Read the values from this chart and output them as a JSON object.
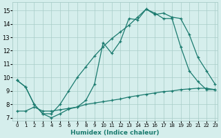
{
  "xlabel": "Humidex (Indice chaleur)",
  "xlim_min": -0.5,
  "xlim_max": 23.3,
  "ylim_min": 6.8,
  "ylim_max": 15.6,
  "yticks": [
    7,
    8,
    9,
    10,
    11,
    12,
    13,
    14,
    15
  ],
  "xticks": [
    0,
    1,
    2,
    3,
    4,
    5,
    6,
    7,
    8,
    9,
    10,
    11,
    12,
    13,
    14,
    15,
    16,
    17,
    18,
    19,
    20,
    21,
    22,
    23
  ],
  "background_color": "#d5eeec",
  "grid_color": "#a8ccc8",
  "line_color": "#1a7a6e",
  "line1_x": [
    0,
    1,
    2,
    3,
    4,
    5,
    6,
    7,
    8,
    9,
    10,
    11,
    12,
    13,
    14,
    15,
    16,
    17,
    18,
    19,
    20,
    21,
    22,
    23
  ],
  "line1_y": [
    9.8,
    9.3,
    8.0,
    7.3,
    7.0,
    7.3,
    7.65,
    7.8,
    8.3,
    9.5,
    12.6,
    11.8,
    12.7,
    14.4,
    14.3,
    15.1,
    14.8,
    14.4,
    14.4,
    12.3,
    10.5,
    9.7,
    9.1,
    9.1
  ],
  "line2_x": [
    0,
    1,
    2,
    3,
    4,
    5,
    6,
    7,
    8,
    9,
    10,
    11,
    12,
    13,
    14,
    15,
    16,
    17,
    18,
    19,
    20,
    21,
    22,
    23
  ],
  "line2_y": [
    9.8,
    9.3,
    8.0,
    7.3,
    7.3,
    8.0,
    9.0,
    10.0,
    10.8,
    11.6,
    12.3,
    12.9,
    13.4,
    13.9,
    14.5,
    15.1,
    14.7,
    14.8,
    14.5,
    14.4,
    13.2,
    11.5,
    10.5,
    9.5
  ],
  "line3_x": [
    0,
    1,
    2,
    3,
    4,
    5,
    6,
    7,
    8,
    9,
    10,
    11,
    12,
    13,
    14,
    15,
    16,
    17,
    18,
    19,
    20,
    21,
    22,
    23
  ],
  "line3_y": [
    7.5,
    7.5,
    7.8,
    7.5,
    7.5,
    7.6,
    7.7,
    7.8,
    8.0,
    8.1,
    8.2,
    8.3,
    8.4,
    8.55,
    8.65,
    8.75,
    8.85,
    8.95,
    9.0,
    9.1,
    9.15,
    9.2,
    9.2,
    9.1
  ]
}
